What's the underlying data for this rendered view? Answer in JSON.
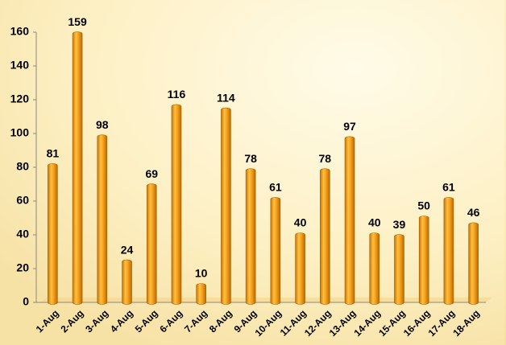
{
  "chart_data": {
    "type": "bar",
    "categories": [
      "1-Aug",
      "2-Aug",
      "3-Aug",
      "4-Aug",
      "5-Aug",
      "6-Aug",
      "7-Aug",
      "8-Aug",
      "9-Aug",
      "10-Aug",
      "11-Aug",
      "12-Aug",
      "13-Aug",
      "14-Aug",
      "15-Aug",
      "16-Aug",
      "17-Aug",
      "18-Aug"
    ],
    "values": [
      81,
      159,
      98,
      24,
      69,
      116,
      10,
      114,
      78,
      61,
      40,
      78,
      97,
      40,
      39,
      50,
      61,
      46
    ],
    "color": "#f0a020",
    "ylim": [
      0,
      160
    ],
    "yticks": [
      0,
      20,
      40,
      60,
      80,
      100,
      120,
      140,
      160
    ],
    "grid": false
  }
}
